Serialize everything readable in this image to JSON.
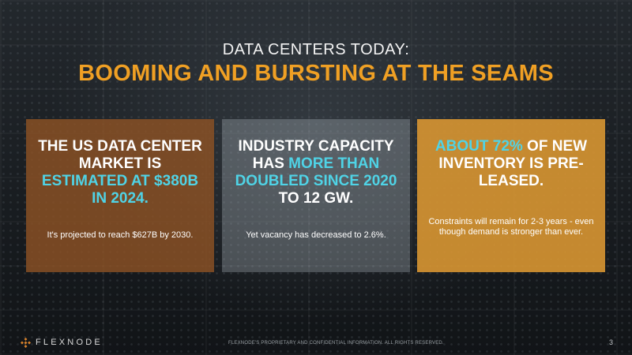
{
  "header": {
    "subtitle": "DATA CENTERS TODAY:",
    "title": "BOOMING AND BURSTING AT THE SEAMS"
  },
  "cards": [
    {
      "head_parts": [
        "THE US DATA CENTER MARKET IS ",
        "ESTIMATED AT $380B IN 2024."
      ],
      "body": "It's projected to reach $627B by 2030."
    },
    {
      "head_parts": [
        "INDUSTRY CAPACITY HAS ",
        "MORE THAN DOUBLED SINCE 2020",
        " TO 12 GW."
      ],
      "body": "Yet vacancy has decreased to 2.6%."
    },
    {
      "head_parts": [
        "ABOUT 72%",
        " OF NEW INVENTORY IS PRE-LEASED."
      ],
      "body": "Constraints will remain for 2-3 years - even though demand is stronger than ever."
    }
  ],
  "footer": {
    "brand": "FLEXNODE",
    "note": "FLEXNODE'S PROPRIETARY AND CONFIDENTIAL INFORMATION. ALL RIGHTS RESERVED.",
    "page": "3"
  },
  "colors": {
    "title": "#f0a024",
    "highlight": "#4fd3e6",
    "card1": "#8c5224",
    "card3": "#d89632"
  }
}
